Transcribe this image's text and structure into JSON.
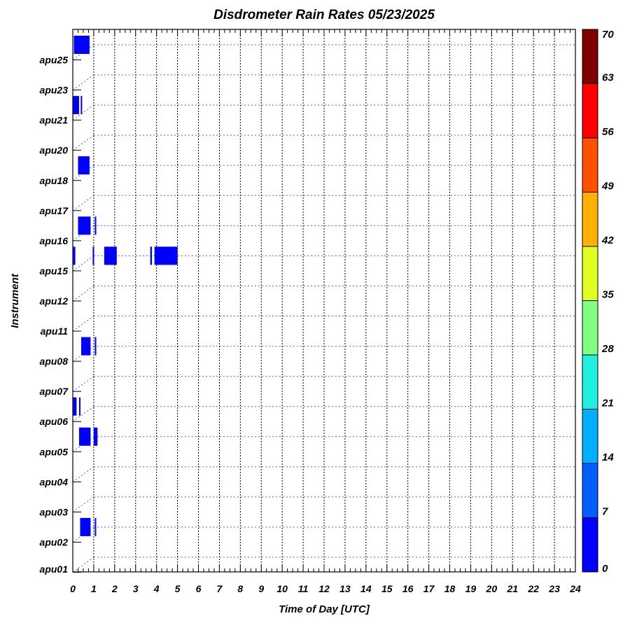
{
  "chart_data": {
    "type": "heatmap",
    "title": "Disdrometer Rain Rates 05/23/2025",
    "xlabel": "Time of Day [UTC]",
    "ylabel": "Instrument",
    "xlim": [
      0,
      24
    ],
    "x_ticks": [
      "0",
      "1",
      "2",
      "3",
      "4",
      "5",
      "6",
      "7",
      "8",
      "9",
      "10",
      "11",
      "12",
      "13",
      "14",
      "15",
      "16",
      "17",
      "18",
      "19",
      "20",
      "21",
      "22",
      "23",
      "24"
    ],
    "grid": true,
    "instruments": [
      "apu01",
      "apu02",
      "apu03",
      "apu04",
      "apu05",
      "apu06",
      "apu07",
      "apu08",
      "apu11",
      "apu12",
      "apu15",
      "apu16",
      "apu17",
      "apu18",
      "apu20",
      "apu21",
      "apu23",
      "apu25"
    ],
    "colorbar": {
      "ticks": [
        "0",
        "7",
        "14",
        "21",
        "28",
        "35",
        "42",
        "49",
        "56",
        "63",
        "70"
      ],
      "colors": [
        "#0000ff",
        "#0060ff",
        "#00b0ff",
        "#20f0e0",
        "#80ff80",
        "#e0ff20",
        "#ffb000",
        "#ff5000",
        "#ff0000",
        "#800000"
      ],
      "placement": "right"
    },
    "events": [
      {
        "instrument": "apu25",
        "start": 0.05,
        "end": 0.8,
        "value": 3
      },
      {
        "instrument": "apu21",
        "start": 0.0,
        "end": 0.3,
        "value": 3
      },
      {
        "instrument": "apu21",
        "start": 0.38,
        "end": 0.42,
        "value": 3
      },
      {
        "instrument": "apu18",
        "start": 0.25,
        "end": 0.8,
        "value": 3
      },
      {
        "instrument": "apu16",
        "start": 0.25,
        "end": 0.85,
        "value": 3
      },
      {
        "instrument": "apu16",
        "start": 1.05,
        "end": 1.12,
        "value": 3
      },
      {
        "instrument": "apu15",
        "start": 0.02,
        "end": 0.12,
        "value": 3
      },
      {
        "instrument": "apu15",
        "start": 0.95,
        "end": 1.02,
        "value": 3
      },
      {
        "instrument": "apu15",
        "start": 1.5,
        "end": 2.1,
        "value": 3
      },
      {
        "instrument": "apu15",
        "start": 3.7,
        "end": 3.78,
        "value": 3
      },
      {
        "instrument": "apu15",
        "start": 3.9,
        "end": 5.0,
        "value": 3
      },
      {
        "instrument": "apu08",
        "start": 0.4,
        "end": 0.85,
        "value": 3
      },
      {
        "instrument": "apu08",
        "start": 1.05,
        "end": 1.12,
        "value": 3
      },
      {
        "instrument": "apu06",
        "start": 0.0,
        "end": 0.18,
        "value": 3
      },
      {
        "instrument": "apu06",
        "start": 0.3,
        "end": 0.35,
        "value": 3
      },
      {
        "instrument": "apu05",
        "start": 0.3,
        "end": 0.85,
        "value": 3
      },
      {
        "instrument": "apu05",
        "start": 1.0,
        "end": 1.18,
        "value": 3
      },
      {
        "instrument": "apu02",
        "start": 0.35,
        "end": 0.85,
        "value": 3
      },
      {
        "instrument": "apu02",
        "start": 1.05,
        "end": 1.1,
        "value": 3
      }
    ]
  }
}
